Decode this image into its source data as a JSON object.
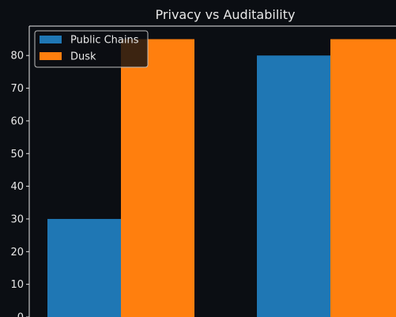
{
  "chart_data": {
    "type": "bar",
    "title": "Privacy vs Auditability",
    "xlabel": "",
    "ylabel": "",
    "categories": [
      "",
      ""
    ],
    "series": [
      {
        "name": "Public Chains",
        "values": [
          30,
          80
        ],
        "color": "#1f77b4"
      },
      {
        "name": "Dusk",
        "values": [
          85,
          85
        ],
        "color": "#ff7f0e"
      }
    ],
    "yticks": [
      0,
      10,
      20,
      30,
      40,
      50,
      60,
      70,
      80
    ],
    "ylim": [
      0,
      89
    ],
    "grid": false,
    "legend": "top-left",
    "background": "#0b0e13",
    "axis_color": "#e8e8e8",
    "text_color": "#e8e8e8"
  }
}
